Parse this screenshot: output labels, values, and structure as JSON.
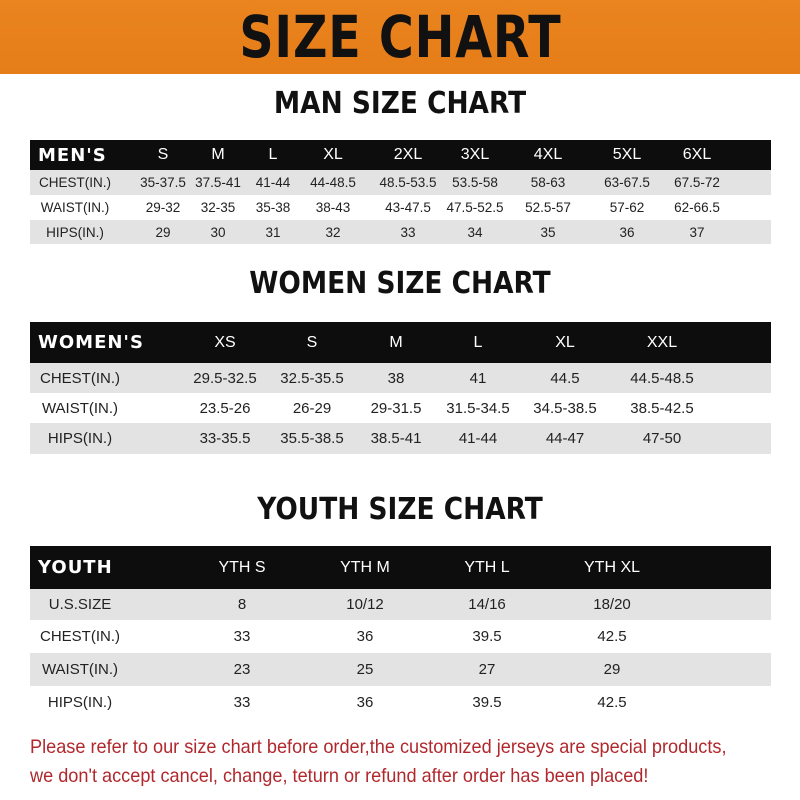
{
  "banner_title": "SIZE CHART",
  "men": {
    "title": "MAN SIZE CHART",
    "header": [
      "MEN'S",
      "S",
      "M",
      "L",
      "XL",
      "2XL",
      "3XL",
      "4XL",
      "5XL",
      "6XL"
    ],
    "rows": [
      [
        "CHEST(IN.)",
        "35-37.5",
        "37.5-41",
        "41-44",
        "44-48.5",
        "48.5-53.5",
        "53.5-58",
        "58-63",
        "63-67.5",
        "67.5-72"
      ],
      [
        "WAIST(IN.)",
        "29-32",
        "32-35",
        "35-38",
        "38-43",
        "43-47.5",
        "47.5-52.5",
        "52.5-57",
        "57-62",
        "62-66.5"
      ],
      [
        "HIPS(IN.)",
        "29",
        "30",
        "31",
        "32",
        "33",
        "34",
        "35",
        "36",
        "37"
      ]
    ]
  },
  "women": {
    "title": "WOMEN SIZE CHART",
    "header": [
      "WOMEN'S",
      "XS",
      "S",
      "M",
      "L",
      "XL",
      "XXL"
    ],
    "rows": [
      [
        "CHEST(IN.)",
        "29.5-32.5",
        "32.5-35.5",
        "38",
        "41",
        "44.5",
        "44.5-48.5"
      ],
      [
        "WAIST(IN.)",
        "23.5-26",
        "26-29",
        "29-31.5",
        "31.5-34.5",
        "34.5-38.5",
        "38.5-42.5"
      ],
      [
        "HIPS(IN.)",
        "33-35.5",
        "35.5-38.5",
        "38.5-41",
        "41-44",
        "44-47",
        "47-50"
      ]
    ]
  },
  "youth": {
    "title": "YOUTH SIZE CHART",
    "header": [
      "YOUTH",
      "YTH S",
      "YTH M",
      "YTH L",
      "YTH XL"
    ],
    "rows": [
      [
        "U.S.SIZE",
        "8",
        "10/12",
        "14/16",
        "18/20"
      ],
      [
        "CHEST(IN.)",
        "33",
        "36",
        "39.5",
        "42.5"
      ],
      [
        "WAIST(IN.)",
        "23",
        "25",
        "27",
        "29"
      ],
      [
        "HIPS(IN.)",
        "33",
        "36",
        "39.5",
        "42.5"
      ]
    ]
  },
  "footer": {
    "line1": "Please refer to our size chart before order,the customized jerseys are special products,",
    "line2": "we don't accept cancel, change, teturn or refund after order has been placed!"
  },
  "colors": {
    "banner": "#e8801e",
    "header_row": "#0d0d0d",
    "stripe": "#e3e3e3",
    "notice": "#b1282c"
  }
}
